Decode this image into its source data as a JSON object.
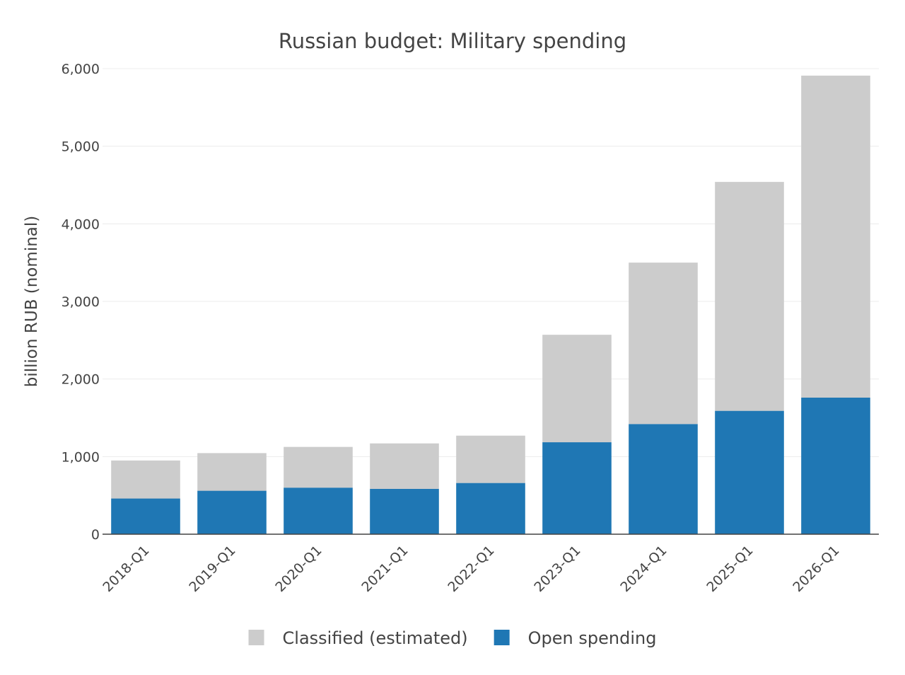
{
  "chart_data": {
    "type": "bar",
    "stacked": true,
    "title": "Russian budget: Military spending",
    "xlabel": "",
    "ylabel": "billion RUB (nominal)",
    "ylim": [
      0,
      6000
    ],
    "yticks": [
      0,
      1000,
      2000,
      3000,
      4000,
      5000,
      6000
    ],
    "ytick_labels": [
      "0",
      "1,000",
      "2,000",
      "3,000",
      "4,000",
      "5,000",
      "6,000"
    ],
    "grid": true,
    "legend_position": "bottom",
    "categories": [
      "2018-Q1",
      "2019-Q1",
      "2020-Q1",
      "2021-Q1",
      "2022-Q1",
      "2023-Q1",
      "2024-Q1",
      "2025-Q1",
      "2026-Q1"
    ],
    "series": [
      {
        "name": "Open spending",
        "color": "#1f77b4",
        "values": [
          460,
          560,
          600,
          585,
          660,
          1185,
          1420,
          1590,
          1760
        ]
      },
      {
        "name": "Classified (estimated)",
        "color": "#cccccc",
        "values": [
          490,
          485,
          525,
          585,
          610,
          1385,
          2080,
          2950,
          4150
        ]
      }
    ],
    "legend_order": [
      "Classified (estimated)",
      "Open spending"
    ]
  }
}
